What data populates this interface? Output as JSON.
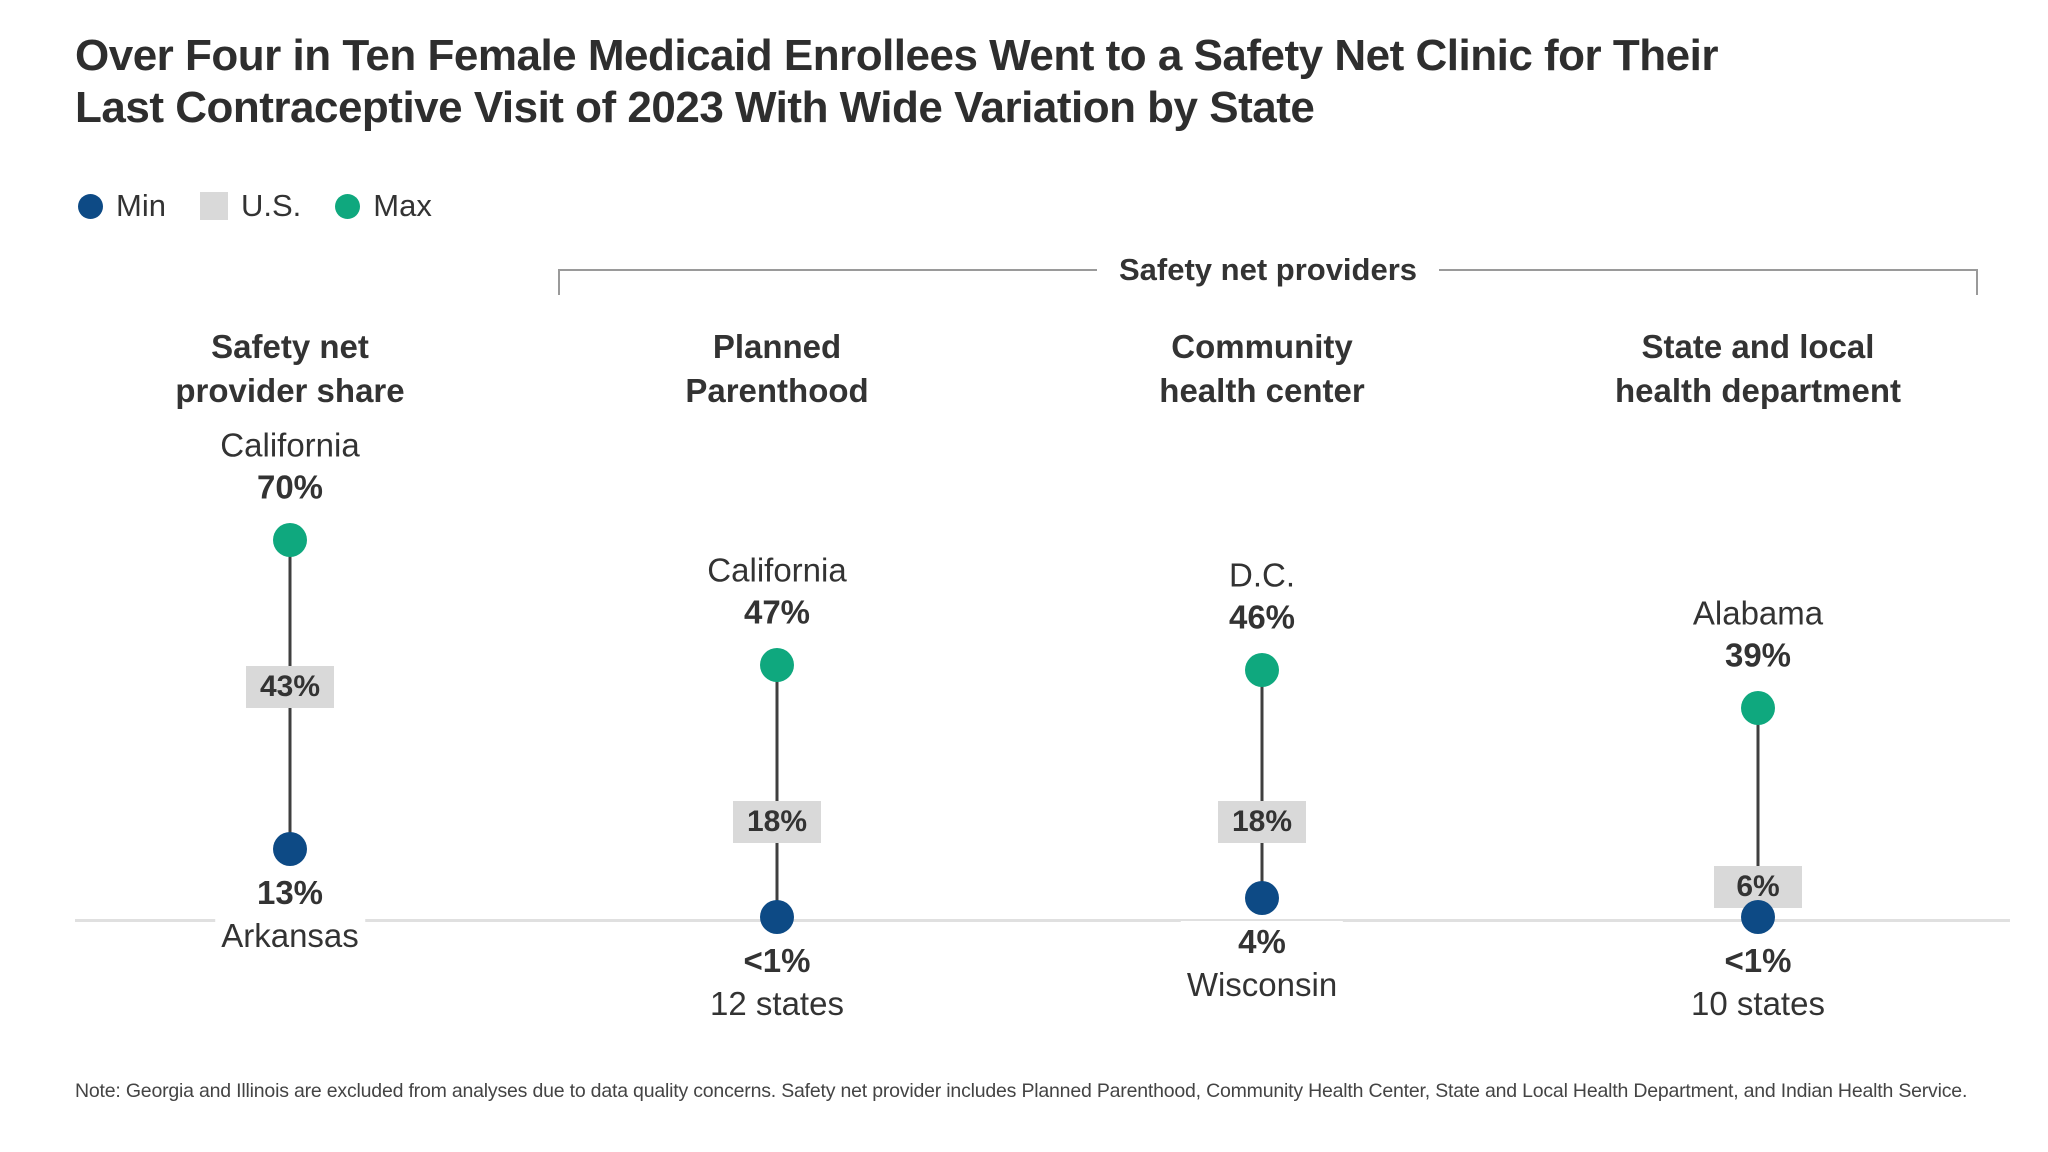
{
  "title_lines": [
    "Over Four in Ten Female Medicaid Enrollees Went to a Safety Net Clinic for Their",
    "Last Contraceptive Visit of 2023 With Wide Variation by State"
  ],
  "legend": [
    {
      "label": "Min",
      "shape": "circle",
      "color": "#0D4A85"
    },
    {
      "label": "U.S.",
      "shape": "square",
      "color": "#D9D9D9"
    },
    {
      "label": "Max",
      "shape": "circle",
      "color": "#0FA87E"
    }
  ],
  "bracket_label": "Safety net providers",
  "note": "Note: Georgia and Illinois are excluded from analyses due to data quality concerns. Safety net provider includes Planned Parenthood, Community Health Center, State and Local Health Department, and Indian Health Service.",
  "chart_data": {
    "type": "dumbbell",
    "unit": "%",
    "value_axis": {
      "min": 0,
      "max": 75,
      "baseline_value": 0,
      "grid": false
    },
    "legend_position": "top-left",
    "colors": {
      "min": "#0D4A85",
      "max": "#0FA87E",
      "us_box_bg": "#D9D9D9",
      "connector": "#3F3F3F",
      "baseline": "#E0E0E0"
    },
    "columns": [
      {
        "header_lines": [
          "Safety net",
          "provider share"
        ],
        "max": {
          "state": "California",
          "label": "70%",
          "value": 70
        },
        "us": {
          "label": "43%",
          "value": 43
        },
        "min": {
          "label": "13%",
          "state": "Arkansas",
          "value": 13
        }
      },
      {
        "header_lines": [
          "Planned",
          "Parenthood"
        ],
        "max": {
          "state": "California",
          "label": "47%",
          "value": 47
        },
        "us": {
          "label": "18%",
          "value": 18
        },
        "min": {
          "label": "<1%",
          "state": "12 states",
          "value": 0.5
        }
      },
      {
        "header_lines": [
          "Community",
          "health center"
        ],
        "max": {
          "state": "D.C.",
          "label": "46%",
          "value": 46
        },
        "us": {
          "label": "18%",
          "value": 18
        },
        "min": {
          "label": "4%",
          "state": "Wisconsin",
          "value": 4
        }
      },
      {
        "header_lines": [
          "State and local",
          "health department"
        ],
        "max": {
          "state": "Alabama",
          "label": "39%",
          "value": 39
        },
        "us": {
          "label": "6%",
          "value": 6
        },
        "min": {
          "label": "<1%",
          "state": "10 states",
          "value": 0.5
        }
      }
    ]
  }
}
